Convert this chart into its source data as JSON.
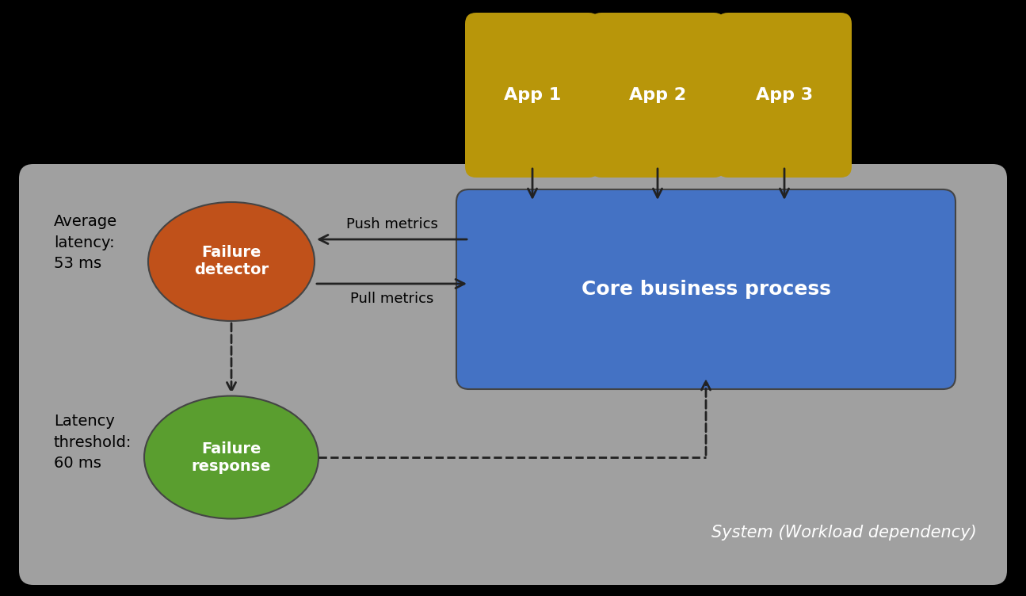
{
  "background_color": "#000000",
  "system_box_color": "#a0a0a0",
  "system_box_label": "System (Workload dependency)",
  "system_box_label_color": "#ffffff",
  "app_boxes": [
    "App 1",
    "App 2",
    "App 3"
  ],
  "app_box_color": "#b8960a",
  "app_box_text_color": "#ffffff",
  "core_box_color": "#4472c4",
  "core_box_label": "Core business process",
  "core_box_label_color": "#ffffff",
  "failure_detector_color": "#c0511a",
  "failure_detector_label": "Failure\ndetector",
  "failure_detector_label_color": "#ffffff",
  "failure_response_color": "#5a9e2f",
  "failure_response_label": "Failure\nresponse",
  "failure_response_label_color": "#ffffff",
  "avg_latency_text": "Average\nlatency:\n53 ms",
  "latency_threshold_text": "Latency\nthreshold:\n60 ms",
  "push_metrics_text": "Push metrics",
  "pull_metrics_text": "Pull metrics",
  "text_color": "#000000",
  "arrow_color": "#222222",
  "dashed_arrow_color": "#222222",
  "figsize": [
    12.95,
    7.52
  ],
  "dpi": 100
}
